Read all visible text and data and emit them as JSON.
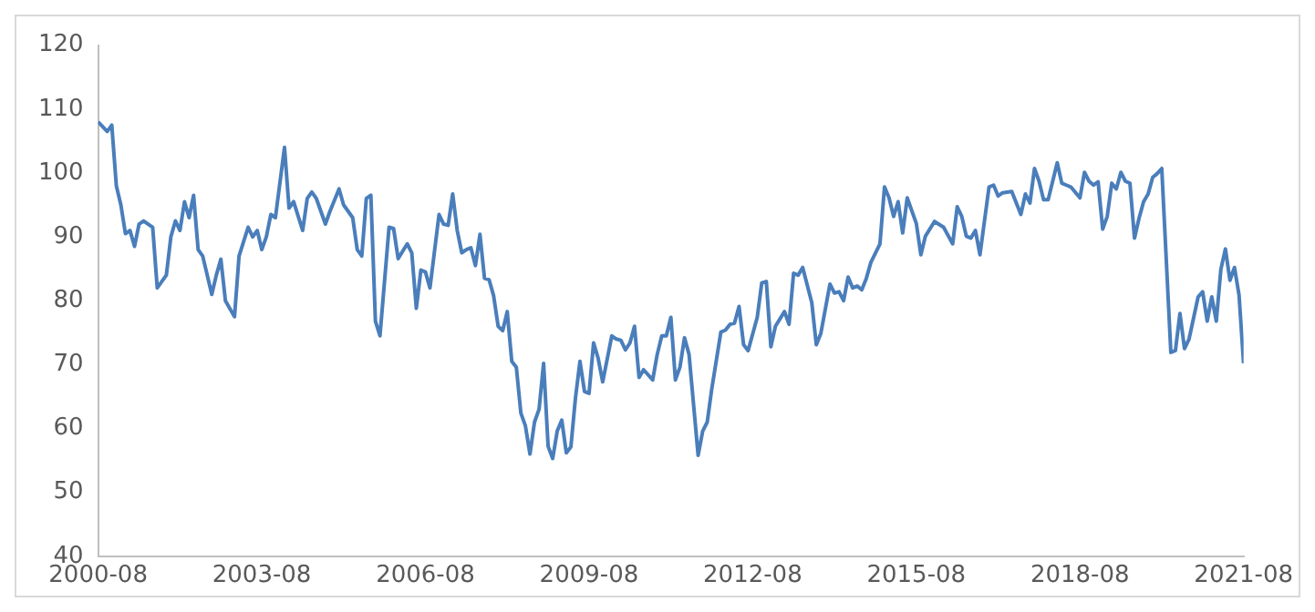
{
  "chart_data": {
    "type": "line",
    "grid": false,
    "legend": false,
    "marker": "none",
    "line_style": "solid",
    "xlim": [
      "2000-08",
      "2021-08"
    ],
    "xticks": [
      "2000-08",
      "2003-08",
      "2006-08",
      "2009-08",
      "2012-08",
      "2015-08",
      "2018-08",
      "2021-08"
    ],
    "ylim": [
      40,
      120
    ],
    "yticks": [
      40,
      50,
      60,
      70,
      80,
      90,
      100,
      110,
      120
    ],
    "x": [
      "2000-08",
      "2000-10",
      "2000-11",
      "2000-12",
      "2001-01",
      "2001-02",
      "2001-03",
      "2001-04",
      "2001-05",
      "2001-06",
      "2001-07",
      "2001-08",
      "2001-09",
      "2001-11",
      "2001-12",
      "2002-01",
      "2002-02",
      "2002-03",
      "2002-04",
      "2002-05",
      "2002-06",
      "2002-07",
      "2002-09",
      "2002-10",
      "2002-11",
      "2002-12",
      "2003-02",
      "2003-03",
      "2003-05",
      "2003-06",
      "2003-07",
      "2003-08",
      "2003-09",
      "2003-10",
      "2003-11",
      "2004-01",
      "2004-02",
      "2004-03",
      "2004-05",
      "2004-06",
      "2004-07",
      "2004-08",
      "2004-10",
      "2004-11",
      "2005-01",
      "2005-02",
      "2005-04",
      "2005-05",
      "2005-06",
      "2005-07",
      "2005-08",
      "2005-09",
      "2005-10",
      "2005-12",
      "2006-01",
      "2006-02",
      "2006-04",
      "2006-05",
      "2006-06",
      "2006-07",
      "2006-08",
      "2006-09",
      "2006-11",
      "2006-12",
      "2007-01",
      "2007-02",
      "2007-03",
      "2007-04",
      "2007-05",
      "2007-06",
      "2007-07",
      "2007-08",
      "2007-09",
      "2007-10",
      "2007-11",
      "2007-12",
      "2008-01",
      "2008-02",
      "2008-03",
      "2008-04",
      "2008-05",
      "2008-06",
      "2008-07",
      "2008-08",
      "2008-09",
      "2008-10",
      "2008-11",
      "2008-12",
      "2009-01",
      "2009-02",
      "2009-03",
      "2009-04",
      "2009-05",
      "2009-06",
      "2009-07",
      "2009-08",
      "2009-09",
      "2009-10",
      "2009-11",
      "2010-01",
      "2010-02",
      "2010-03",
      "2010-04",
      "2010-05",
      "2010-06",
      "2010-07",
      "2010-08",
      "2010-10",
      "2010-11",
      "2010-12",
      "2011-01",
      "2011-02",
      "2011-03",
      "2011-04",
      "2011-05",
      "2011-06",
      "2011-08",
      "2011-09",
      "2011-10",
      "2011-11",
      "2012-01",
      "2012-02",
      "2012-03",
      "2012-04",
      "2012-05",
      "2012-06",
      "2012-07",
      "2012-09",
      "2012-10",
      "2012-11",
      "2012-12",
      "2013-01",
      "2013-03",
      "2013-04",
      "2013-05",
      "2013-06",
      "2013-07",
      "2013-09",
      "2013-10",
      "2013-11",
      "2014-01",
      "2014-02",
      "2014-03",
      "2014-04",
      "2014-05",
      "2014-06",
      "2014-07",
      "2014-08",
      "2014-09",
      "2014-10",
      "2014-12",
      "2015-01",
      "2015-02",
      "2015-03",
      "2015-04",
      "2015-05",
      "2015-06",
      "2015-08",
      "2015-09",
      "2015-10",
      "2015-12",
      "2016-02",
      "2016-04",
      "2016-05",
      "2016-06",
      "2016-07",
      "2016-08",
      "2016-09",
      "2016-10",
      "2016-12",
      "2017-01",
      "2017-02",
      "2017-03",
      "2017-05",
      "2017-07",
      "2017-08",
      "2017-09",
      "2017-10",
      "2017-11",
      "2017-12",
      "2018-01",
      "2018-03",
      "2018-04",
      "2018-05",
      "2018-06",
      "2018-08",
      "2018-09",
      "2018-10",
      "2018-11",
      "2018-12",
      "2019-01",
      "2019-02",
      "2019-03",
      "2019-04",
      "2019-05",
      "2019-06",
      "2019-07",
      "2019-08",
      "2019-09",
      "2019-10",
      "2019-11",
      "2019-12",
      "2020-01",
      "2020-02",
      "2020-04",
      "2020-05",
      "2020-06",
      "2020-07",
      "2020-08",
      "2020-10",
      "2020-11",
      "2020-12",
      "2021-01",
      "2021-02",
      "2021-03",
      "2021-04",
      "2021-05",
      "2021-06",
      "2021-07",
      "2021-08"
    ],
    "series": [
      {
        "color": "#4a7ebb",
        "values": [
          108,
          106.5,
          107.5,
          98,
          95,
          90.5,
          91,
          88.5,
          92,
          92.5,
          92,
          91.5,
          82,
          84,
          90,
          92.5,
          91,
          95.5,
          93,
          96.5,
          88,
          87,
          81,
          84,
          86.5,
          80,
          77.5,
          87,
          91.5,
          90,
          91,
          88,
          90,
          93.5,
          93,
          104,
          94.5,
          95.5,
          91,
          96,
          97,
          96,
          92,
          94,
          97.5,
          95,
          93,
          88,
          87,
          96,
          96.5,
          76.8,
          74.5,
          91.5,
          91.3,
          86.6,
          88.9,
          87.5,
          78.8,
          84.8,
          84.5,
          82,
          93.5,
          92,
          91.8,
          96.7,
          91,
          87.5,
          88,
          88.3,
          85.5,
          90.4,
          83.5,
          83.3,
          80.8,
          76,
          75.3,
          78.3,
          70.5,
          69.6,
          62.4,
          60.4,
          56,
          61,
          63,
          70.2,
          57.2,
          55.3,
          59.6,
          61.3,
          56.2,
          57.1,
          64.7,
          70.5,
          65.8,
          65.5,
          73.4,
          71,
          67.3,
          74.5,
          74,
          73.8,
          72.3,
          73.4,
          76,
          68,
          69.2,
          67.6,
          71.6,
          74.5,
          74.5,
          77.4,
          67.6,
          69.6,
          74.2,
          71.6,
          55.8,
          59.6,
          61,
          66.2,
          75.1,
          75.4,
          76.3,
          76.5,
          79.1,
          73.1,
          72.2,
          77.4,
          82.8,
          83,
          72.8,
          76,
          78.3,
          76.3,
          84.3,
          84,
          85.2,
          79.7,
          73.1,
          74.9,
          82.6,
          81.2,
          81.4,
          80,
          83.7,
          82,
          82.3,
          81.7,
          83.5,
          86,
          88.9,
          97.8,
          96.1,
          93.2,
          95.5,
          90.6,
          96.1,
          92.1,
          87.2,
          90.1,
          92.4,
          91.5,
          88.9,
          94.7,
          93.2,
          90.1,
          89.8,
          91,
          87.2,
          97.8,
          98.1,
          96.4,
          96.9,
          97.1,
          93.5,
          96.7,
          95.3,
          100.7,
          98.7,
          95.8,
          95.8,
          101.6,
          98.4,
          98.1,
          97.8,
          96.1,
          100.1,
          98.7,
          98.1,
          98.6,
          91.2,
          93.2,
          98.4,
          97.5,
          100.1,
          98.7,
          98.4,
          89.8,
          92.9,
          95.5,
          96.7,
          99.3,
          99.9,
          100.7,
          71.9,
          72.2,
          78,
          72.5,
          74,
          80.6,
          81.4,
          76.8,
          80.6,
          76.8,
          84.9,
          88.1,
          83.2,
          85.2,
          80.9,
          70.2
        ]
      }
    ]
  }
}
